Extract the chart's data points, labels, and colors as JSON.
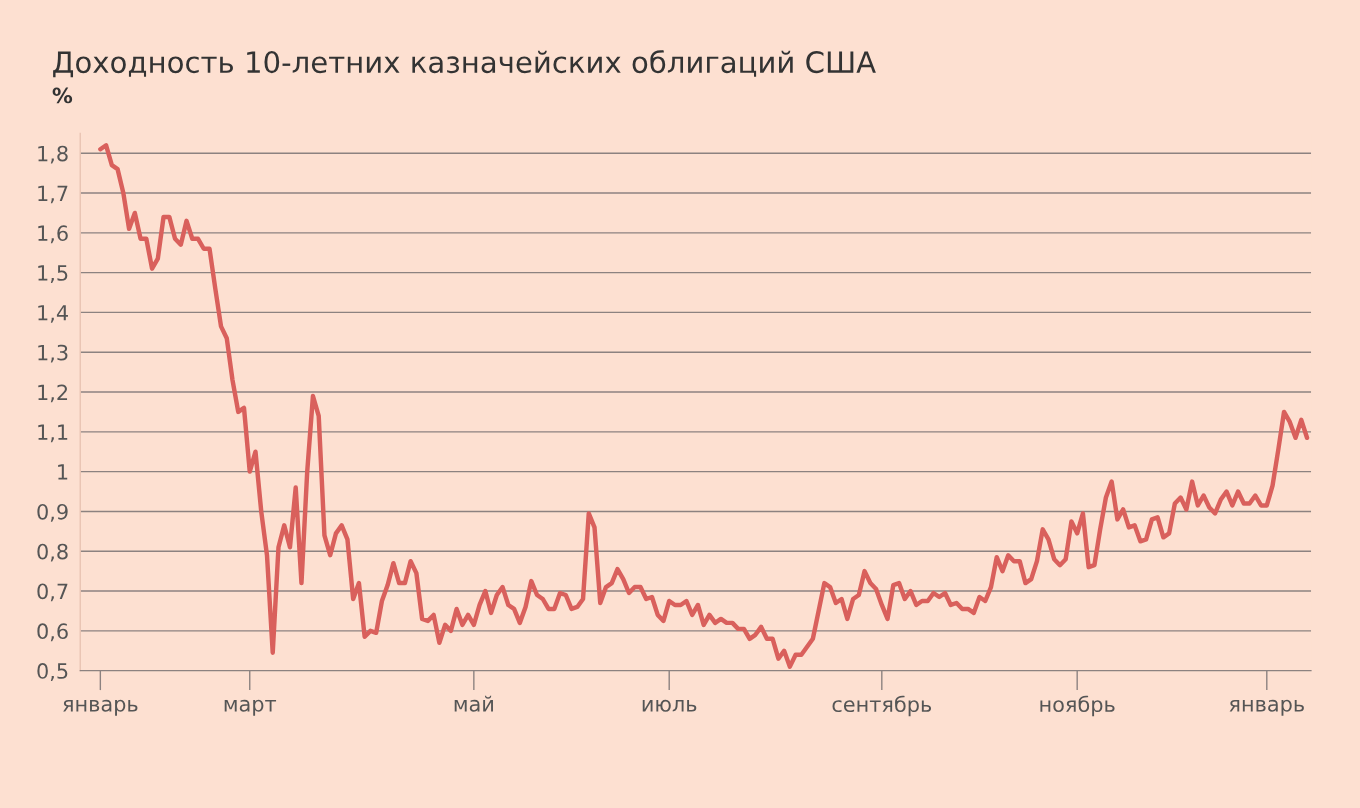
{
  "chart_data": {
    "type": "line",
    "title": "Доходность 10-летних казначейских облигаций США",
    "ylabel": "%",
    "categories": [
      "январь",
      null,
      null,
      null,
      null,
      null,
      null,
      null,
      null,
      null,
      null,
      null,
      null,
      null,
      null,
      null,
      null,
      null,
      null,
      null,
      null,
      null,
      null,
      null,
      null,
      null,
      "март",
      null,
      null,
      null,
      null,
      null,
      null,
      null,
      null,
      null,
      null,
      null,
      null,
      null,
      null,
      null,
      null,
      null,
      null,
      null,
      null,
      null,
      null,
      null,
      null,
      null,
      null,
      null,
      null,
      null,
      null,
      null,
      null,
      null,
      null,
      null,
      null,
      null,
      null,
      "май",
      null,
      null,
      null,
      null,
      null,
      null,
      null,
      null,
      null,
      null,
      null,
      null,
      null,
      null,
      null,
      null,
      null,
      null,
      null,
      null,
      null,
      null,
      null,
      null,
      null,
      null,
      null,
      null,
      null,
      null,
      null,
      null,
      null,
      "июль",
      null,
      null,
      null,
      null,
      null,
      null,
      null,
      null,
      null,
      null,
      null,
      null,
      null,
      null,
      null,
      null,
      null,
      null,
      null,
      null,
      null,
      null,
      null,
      null,
      null,
      null,
      null,
      null,
      null,
      null,
      null,
      null,
      null,
      null,
      null,
      null,
      "сентябрь",
      null,
      null,
      null,
      null,
      null,
      null,
      null,
      null,
      null,
      null,
      null,
      null,
      null,
      null,
      null,
      null,
      null,
      null,
      null,
      null,
      null,
      null,
      null,
      null,
      null,
      null,
      null,
      null,
      null,
      null,
      null,
      null,
      null,
      "ноябрь",
      null,
      null,
      null,
      null,
      null,
      null,
      null,
      null,
      null,
      null,
      null,
      null,
      null,
      null,
      null,
      null,
      null,
      null,
      null,
      null,
      null,
      null,
      null,
      null,
      null,
      null,
      null,
      null,
      null,
      null,
      null,
      null,
      "январь",
      null,
      null,
      null,
      null,
      null,
      null,
      null
    ],
    "ylim": [
      0.5,
      1.85
    ],
    "yticks": [
      {
        "value": 0.5,
        "label": "0,5"
      },
      {
        "value": 0.6,
        "label": "0,6"
      },
      {
        "value": 0.7,
        "label": "0,7"
      },
      {
        "value": 0.8,
        "label": "0,8"
      },
      {
        "value": 0.9,
        "label": "0,9"
      },
      1,
      {
        "value": 1.1,
        "label": "1,1"
      },
      {
        "value": 1.2,
        "label": "1,2"
      },
      {
        "value": 1.3,
        "label": "1,3"
      },
      {
        "value": 1.4,
        "label": "1,4"
      },
      {
        "value": 1.5,
        "label": "1,5"
      },
      {
        "value": 1.6,
        "label": "1,6"
      },
      {
        "value": 1.7,
        "label": "1,7"
      },
      {
        "value": 1.8,
        "label": "1,8"
      }
    ],
    "grid": "y",
    "marker": "none",
    "line_style": "solid",
    "series": [
      {
        "color": "#d9605c",
        "values": [
          1.81,
          1.82,
          1.77,
          1.76,
          1.7,
          1.61,
          1.65,
          1.585,
          1.585,
          1.51,
          1.535,
          1.64,
          1.64,
          1.585,
          1.57,
          1.63,
          1.585,
          1.585,
          1.56,
          1.56,
          1.46,
          1.365,
          1.335,
          1.23,
          1.15,
          1.16,
          1.0,
          1.05,
          0.9,
          0.79,
          0.545,
          0.81,
          0.865,
          0.81,
          0.96,
          0.72,
          1.0,
          1.19,
          1.14,
          0.84,
          0.79,
          0.845,
          0.865,
          0.83,
          0.68,
          0.72,
          0.585,
          0.6,
          0.595,
          0.675,
          0.715,
          0.77,
          0.72,
          0.72,
          0.775,
          0.745,
          0.63,
          0.625,
          0.64,
          0.57,
          0.615,
          0.6,
          0.655,
          0.615,
          0.64,
          0.615,
          0.665,
          0.7,
          0.645,
          0.69,
          0.71,
          0.665,
          0.655,
          0.62,
          0.66,
          0.725,
          0.69,
          0.68,
          0.655,
          0.655,
          0.695,
          0.69,
          0.655,
          0.66,
          0.68,
          0.895,
          0.86,
          0.67,
          0.71,
          0.72,
          0.755,
          0.73,
          0.695,
          0.71,
          0.71,
          0.68,
          0.685,
          0.64,
          0.625,
          0.675,
          0.665,
          0.665,
          0.675,
          0.64,
          0.665,
          0.615,
          0.64,
          0.62,
          0.63,
          0.62,
          0.62,
          0.605,
          0.605,
          0.58,
          0.59,
          0.61,
          0.58,
          0.58,
          0.53,
          0.55,
          0.51,
          0.54,
          0.54,
          0.56,
          0.58,
          0.65,
          0.72,
          0.71,
          0.67,
          0.68,
          0.63,
          0.68,
          0.69,
          0.75,
          0.72,
          0.705,
          0.665,
          0.63,
          0.715,
          0.72,
          0.68,
          0.7,
          0.665,
          0.675,
          0.675,
          0.695,
          0.685,
          0.695,
          0.665,
          0.67,
          0.655,
          0.655,
          0.645,
          0.685,
          0.675,
          0.71,
          0.785,
          0.75,
          0.79,
          0.775,
          0.775,
          0.72,
          0.73,
          0.775,
          0.855,
          0.83,
          0.78,
          0.765,
          0.78,
          0.875,
          0.845,
          0.895,
          0.76,
          0.765,
          0.855,
          0.935,
          0.975,
          0.88,
          0.905,
          0.86,
          0.865,
          0.825,
          0.83,
          0.88,
          0.885,
          0.835,
          0.845,
          0.92,
          0.935,
          0.905,
          0.975,
          0.915,
          0.94,
          0.91,
          0.895,
          0.93,
          0.95,
          0.915,
          0.95,
          0.92,
          0.92,
          0.94,
          0.915,
          0.915,
          0.965,
          1.055,
          1.15,
          1.125,
          1.085,
          1.13,
          1.085
        ]
      }
    ]
  }
}
